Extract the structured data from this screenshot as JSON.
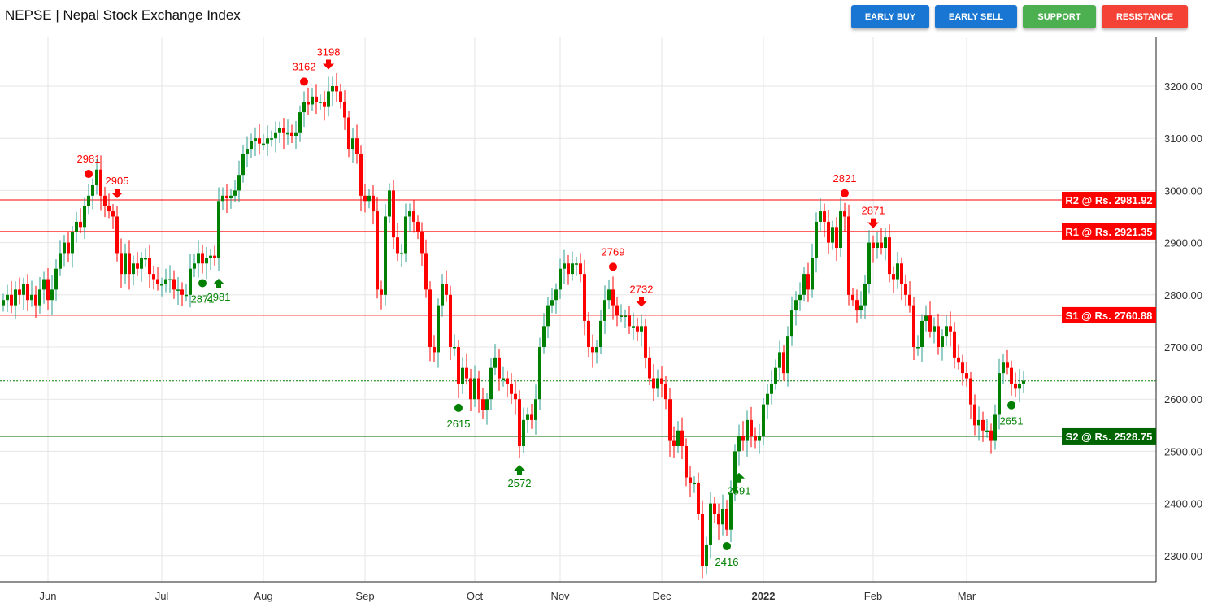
{
  "header": {
    "title": "NEPSE | Nepal Stock Exchange Index",
    "buttons": [
      {
        "label": "EARLY BUY",
        "color": "#1976d2"
      },
      {
        "label": "EARLY SELL",
        "color": "#1976d2"
      },
      {
        "label": "SUPPORT",
        "color": "#4caf50"
      },
      {
        "label": "RESISTANCE",
        "color": "#f44336"
      }
    ]
  },
  "chart_data": {
    "type": "candlestick",
    "colors": {
      "up": "#008000",
      "down": "#ff0000",
      "resistance": "#ff0000",
      "support": "#006400"
    },
    "ylim": [
      2250,
      3290
    ],
    "yticks": [
      "2300.00",
      "2400.00",
      "2500.00",
      "2600.00",
      "2700.00",
      "2800.00",
      "2900.00",
      "3000.00",
      "3100.00",
      "3200.00"
    ],
    "xticks": [
      {
        "label": "Jun",
        "at": 11
      },
      {
        "label": "Jul",
        "at": 39
      },
      {
        "label": "Aug",
        "at": 64
      },
      {
        "label": "Sep",
        "at": 89
      },
      {
        "label": "Oct",
        "at": 116
      },
      {
        "label": "Nov",
        "at": 137
      },
      {
        "label": "Dec",
        "at": 162
      },
      {
        "label": "2022",
        "at": 187,
        "bold": true
      },
      {
        "label": "Feb",
        "at": 214
      },
      {
        "label": "Mar",
        "at": 237
      }
    ],
    "first_open": 2780,
    "closes": [
      2790,
      2800,
      2780,
      2810,
      2800,
      2820,
      2790,
      2800,
      2780,
      2810,
      2830,
      2790,
      2810,
      2850,
      2880,
      2900,
      2880,
      2920,
      2940,
      2930,
      2970,
      2990,
      3010,
      3040,
      2990,
      2970,
      2960,
      2950,
      2880,
      2840,
      2880,
      2840,
      2860,
      2850,
      2870,
      2870,
      2840,
      2830,
      2820,
      2820,
      2830,
      2830,
      2810,
      2810,
      2800,
      2800,
      2850,
      2860,
      2880,
      2860,
      2870,
      2875,
      2870,
      2980,
      2990,
      2985,
      2990,
      3000,
      3030,
      3070,
      3080,
      3095,
      3100,
      3090,
      3090,
      3100,
      3100,
      3110,
      3120,
      3110,
      3110,
      3105,
      3110,
      3150,
      3170,
      3165,
      3180,
      3170,
      3170,
      3160,
      3190,
      3200,
      3190,
      3170,
      3140,
      3080,
      3100,
      3070,
      2990,
      2980,
      2990,
      2960,
      2810,
      2800,
      2950,
      3000,
      2910,
      2880,
      2880,
      2950,
      2960,
      2940,
      2920,
      2880,
      2810,
      2700,
      2690,
      2780,
      2820,
      2800,
      2700,
      2700,
      2630,
      2660,
      2640,
      2600,
      2640,
      2600,
      2580,
      2600,
      2660,
      2680,
      2640,
      2640,
      2630,
      2610,
      2600,
      2510,
      2560,
      2570,
      2560,
      2600,
      2700,
      2740,
      2780,
      2790,
      2810,
      2850,
      2860,
      2840,
      2860,
      2860,
      2840,
      2750,
      2700,
      2690,
      2700,
      2750,
      2790,
      2810,
      2780,
      2760,
      2760,
      2760,
      2740,
      2740,
      2730,
      2740,
      2680,
      2640,
      2620,
      2640,
      2630,
      2600,
      2520,
      2510,
      2540,
      2510,
      2450,
      2440,
      2440,
      2380,
      2280,
      2320,
      2400,
      2380,
      2360,
      2390,
      2350,
      2420,
      2500,
      2530,
      2520,
      2560,
      2530,
      2520,
      2530,
      2590,
      2610,
      2630,
      2660,
      2690,
      2650,
      2720,
      2770,
      2790,
      2800,
      2840,
      2810,
      2870,
      2940,
      2960,
      2940,
      2900,
      2930,
      2890,
      2960,
      2950,
      2800,
      2790,
      2770,
      2780,
      2820,
      2900,
      2890,
      2900,
      2890,
      2910,
      2840,
      2830,
      2860,
      2820,
      2800,
      2780,
      2700,
      2700,
      2750,
      2760,
      2730,
      2740,
      2700,
      2720,
      2740,
      2730,
      2680,
      2670,
      2650,
      2640,
      2590,
      2550,
      2560,
      2540,
      2540,
      2520,
      2570,
      2650,
      2670,
      2660,
      2630,
      2620,
      2630,
      2635
    ],
    "levels": [
      {
        "label": "R2 @ Rs. 2981.92",
        "value": 2981.92,
        "kind": "resistance"
      },
      {
        "label": "R1 @ Rs. 2921.35",
        "value": 2921.35,
        "kind": "resistance"
      },
      {
        "label": "S1 @ Rs. 2760.88",
        "value": 2760.88,
        "kind": "resistance"
      },
      {
        "label": "S2 @ Rs. 2528.75",
        "value": 2528.75,
        "kind": "support"
      }
    ],
    "last_price": 2635,
    "markers": [
      {
        "type": "sell-dot",
        "at": 21,
        "label": "2981"
      },
      {
        "type": "sell-dot",
        "at": 74,
        "label": "3162"
      },
      {
        "type": "sell-dot",
        "at": 150,
        "label": "2769"
      },
      {
        "type": "sell-dot",
        "at": 207,
        "label": "2821"
      },
      {
        "type": "sell-arrow",
        "at": 28,
        "label": "2905"
      },
      {
        "type": "sell-arrow",
        "at": 80,
        "label": "3198"
      },
      {
        "type": "sell-arrow",
        "at": 157,
        "label": "2732"
      },
      {
        "type": "sell-arrow",
        "at": 214,
        "label": "2871"
      },
      {
        "type": "buy-dot",
        "at": 49,
        "label": "2871"
      },
      {
        "type": "buy-dot",
        "at": 112,
        "label": "2615"
      },
      {
        "type": "buy-dot",
        "at": 178,
        "label": "2416"
      },
      {
        "type": "buy-dot",
        "at": 248,
        "label": "2651"
      },
      {
        "type": "buy-arrow",
        "at": 53,
        "label": "2981"
      },
      {
        "type": "buy-arrow",
        "at": 127,
        "label": "2572"
      },
      {
        "type": "buy-arrow",
        "at": 181,
        "label": "2591"
      }
    ]
  }
}
